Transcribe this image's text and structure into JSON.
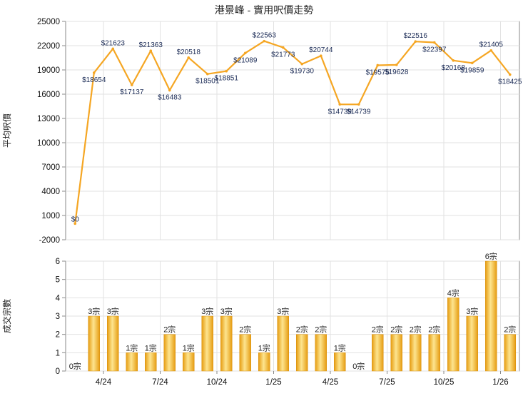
{
  "page": {
    "title": "港景峰 - 實用呎價走勢"
  },
  "colors": {
    "line": "#f5a623",
    "bar_light": "#fde58f",
    "bar_dark": "#e69c11",
    "grid": "#e2e2e2",
    "axis": "#888888",
    "value_label": "#1a2a55"
  },
  "chart_data": [
    {
      "type": "line",
      "title": "港景峰 - 實用呎價走勢",
      "ylabel": "平均呎價",
      "ylim": [
        -2000,
        25000
      ],
      "yticks": [
        -2000,
        1000,
        4000,
        7000,
        10000,
        13000,
        16000,
        19000,
        22000,
        25000
      ],
      "grid": true,
      "x_tick_labels": [
        "4/24",
        "7/24",
        "10/24",
        "1/25",
        "4/25",
        "7/25",
        "10/25",
        "1/26"
      ],
      "values": [
        0,
        18654,
        21623,
        17137,
        21363,
        16483,
        20518,
        18501,
        18851,
        21089,
        22563,
        21773,
        19730,
        20744,
        14739,
        14739,
        19575,
        19628,
        22516,
        22397,
        20168,
        19859,
        21405,
        18425
      ],
      "labels": [
        "$0",
        "$18654",
        "$21623",
        "$17137",
        "$21363",
        "$16483",
        "$20518",
        "$18501",
        "$18851",
        "$21089",
        "$22563",
        "$21773",
        "$19730",
        "$20744",
        "$14739",
        "$14739",
        "$19575",
        "$19628",
        "$22516",
        "$22397",
        "$20168",
        "$19859",
        "$21405",
        "$18425"
      ]
    },
    {
      "type": "bar",
      "ylabel": "成交宗數",
      "ylim": [
        0,
        6
      ],
      "yticks": [
        0,
        1,
        2,
        3,
        4,
        5,
        6
      ],
      "grid": true,
      "x_tick_labels": [
        "4/24",
        "7/24",
        "10/24",
        "1/25",
        "4/25",
        "7/25",
        "10/25",
        "1/26"
      ],
      "values": [
        0,
        3,
        3,
        1,
        1,
        2,
        1,
        3,
        3,
        2,
        1,
        3,
        2,
        2,
        1,
        0,
        2,
        2,
        2,
        2,
        4,
        3,
        6,
        2
      ],
      "labels": [
        "0宗",
        "3宗",
        "3宗",
        "1宗",
        "1宗",
        "2宗",
        "1宗",
        "3宗",
        "3宗",
        "2宗",
        "1宗",
        "3宗",
        "2宗",
        "2宗",
        "1宗",
        "0宗",
        "2宗",
        "2宗",
        "2宗",
        "2宗",
        "4宗",
        "3宗",
        "6宗",
        "2宗"
      ]
    }
  ]
}
